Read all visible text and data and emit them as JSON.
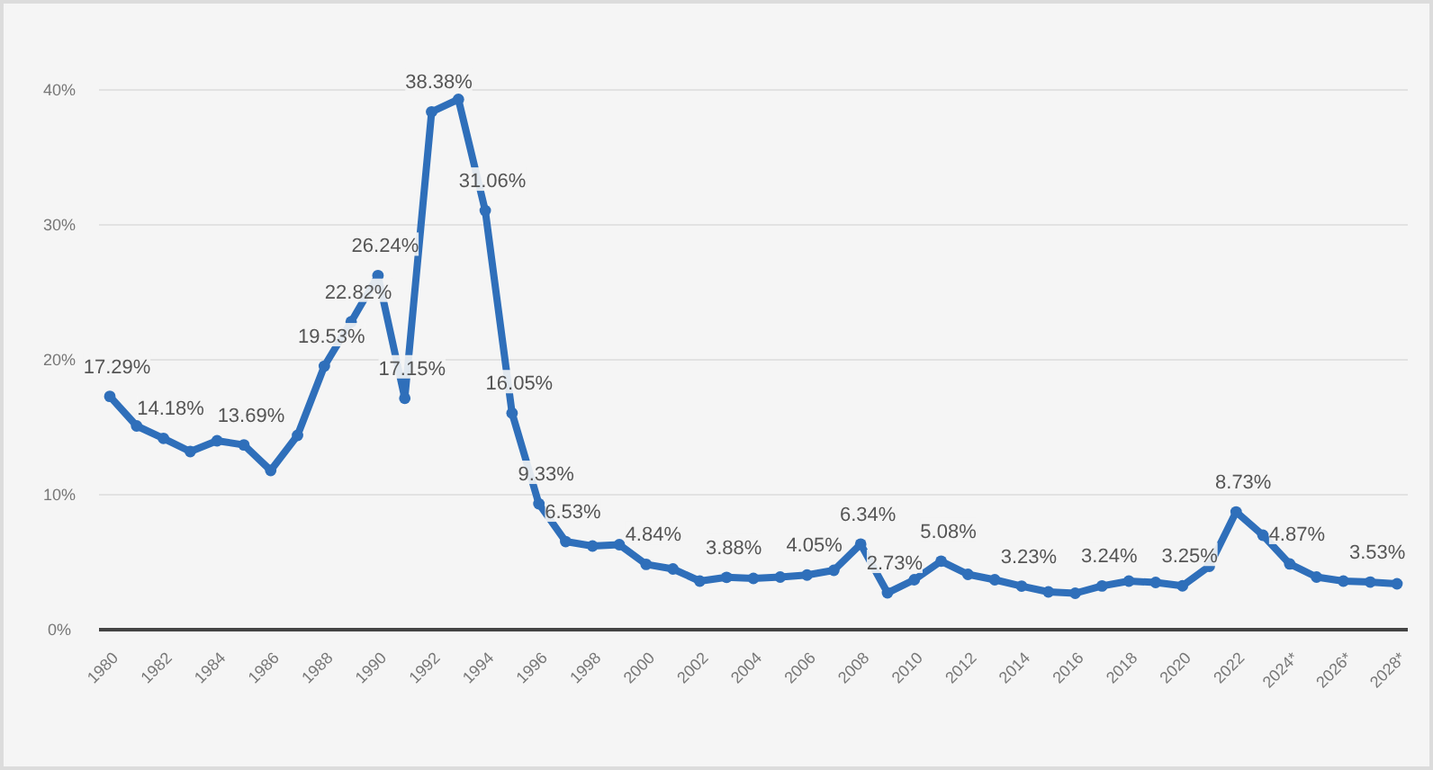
{
  "chart_data": {
    "type": "line",
    "categories": [
      "1980",
      null,
      "1982",
      null,
      "1984",
      null,
      "1986",
      null,
      "1988",
      null,
      "1990",
      null,
      "1992",
      null,
      "1994",
      null,
      "1996",
      null,
      "1998",
      null,
      "2000",
      null,
      "2002",
      null,
      "2004",
      null,
      "2006",
      null,
      "2008",
      null,
      "2010",
      null,
      "2012",
      null,
      "2014",
      null,
      "2016",
      null,
      "2018",
      null,
      "2020",
      null,
      "2022",
      null,
      "2024*",
      null,
      "2026*",
      null,
      "2028*"
    ],
    "series": [
      {
        "color": "#2f6fba",
        "values": [
          17.29,
          15.1,
          14.18,
          13.2,
          14.0,
          13.69,
          11.8,
          14.4,
          19.53,
          22.82,
          26.24,
          17.15,
          38.38,
          39.3,
          31.06,
          16.05,
          9.33,
          6.53,
          6.2,
          6.3,
          4.84,
          4.5,
          3.6,
          3.88,
          3.8,
          3.9,
          4.05,
          4.4,
          6.34,
          2.73,
          3.7,
          5.08,
          4.1,
          3.7,
          3.23,
          2.8,
          2.7,
          3.24,
          3.6,
          3.5,
          3.25,
          4.7,
          8.73,
          7.0,
          4.87,
          3.9,
          3.6,
          3.53,
          3.4
        ],
        "value_labels": [
          "17.29%",
          null,
          "14.18%",
          null,
          null,
          "13.69%",
          null,
          null,
          "19.53%",
          "22.82%",
          "26.24%",
          "17.15%",
          "38.38%",
          null,
          "31.06%",
          "16.05%",
          "9.33%",
          "6.53%",
          null,
          null,
          "4.84%",
          null,
          null,
          "3.88%",
          null,
          null,
          "4.05%",
          null,
          "6.34%",
          "2.73%",
          null,
          "5.08%",
          null,
          null,
          "3.23%",
          null,
          null,
          "3.24%",
          null,
          null,
          "3.25%",
          null,
          "8.73%",
          null,
          "4.87%",
          null,
          null,
          "3.53%",
          null
        ]
      }
    ],
    "ylim": [
      0,
      40
    ],
    "yticks": [
      {
        "value": 0,
        "label": "0%"
      },
      {
        "value": 10,
        "label": "10%"
      },
      {
        "value": 20,
        "label": "20%"
      },
      {
        "value": 30,
        "label": "30%"
      },
      {
        "value": 40,
        "label": "40%"
      }
    ],
    "grid": "y",
    "marker": "circle",
    "line_style": "solid"
  }
}
